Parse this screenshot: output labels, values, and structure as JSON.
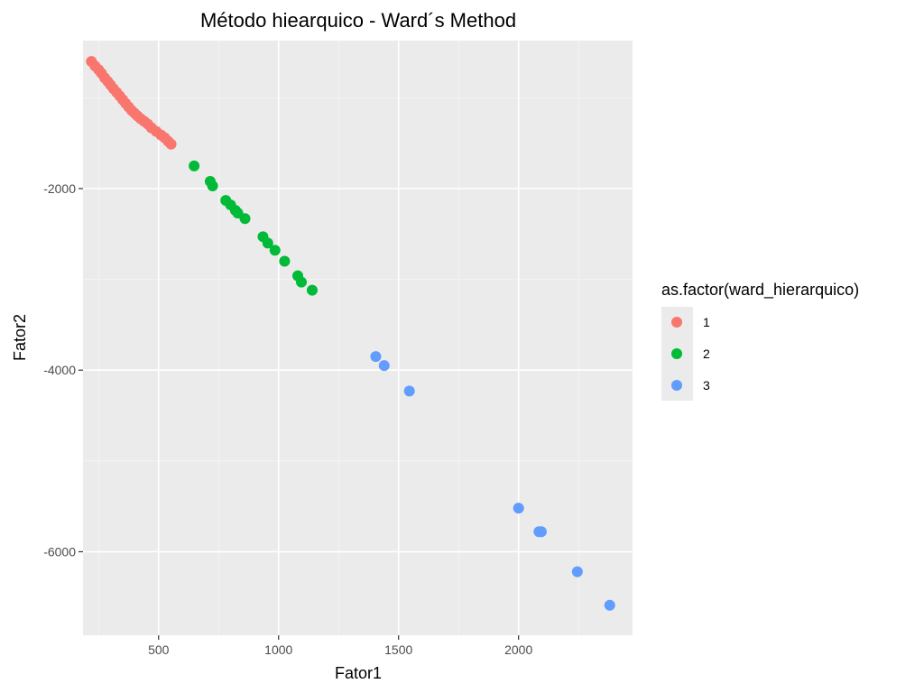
{
  "chart_data": {
    "type": "scatter",
    "title": "Método hiearquico - Ward´s Method",
    "xlabel": "Fator1",
    "ylabel": "Fator2",
    "xlim": [
      185,
      2475
    ],
    "ylim": [
      -6920,
      -370
    ],
    "x_ticks": [
      500,
      1000,
      1500,
      2000
    ],
    "y_ticks": [
      -2000,
      -4000,
      -6000
    ],
    "x_tick_labels": [
      "500",
      "1000",
      "1500",
      "2000"
    ],
    "y_tick_labels": [
      "-2000",
      "-4000",
      "-6000"
    ],
    "grid": true,
    "legend": {
      "title": "as.factor(ward_hierarquico)",
      "position": "right"
    },
    "series": [
      {
        "name": "1",
        "color": "#F8766D",
        "x": [
          220,
          235,
          250,
          262,
          275,
          288,
          300,
          312,
          325,
          338,
          350,
          362,
          375,
          388,
          400,
          412,
          425,
          440,
          455,
          470,
          490,
          510,
          525,
          540,
          552
        ],
        "y": [
          -600,
          -650,
          -690,
          -730,
          -780,
          -820,
          -860,
          -900,
          -940,
          -980,
          -1020,
          -1060,
          -1100,
          -1140,
          -1170,
          -1200,
          -1230,
          -1260,
          -1290,
          -1330,
          -1370,
          -1410,
          -1440,
          -1480,
          -1510
        ]
      },
      {
        "name": "2",
        "color": "#00BA38",
        "x": [
          648,
          715,
          725,
          780,
          800,
          820,
          830,
          860,
          935,
          955,
          985,
          1025,
          1080,
          1095,
          1140
        ],
        "y": [
          -1750,
          -1920,
          -1970,
          -2130,
          -2180,
          -2240,
          -2270,
          -2330,
          -2530,
          -2600,
          -2680,
          -2800,
          -2960,
          -3030,
          -3120
        ]
      },
      {
        "name": "3",
        "color": "#619CFF",
        "x": [
          1405,
          1440,
          1545,
          2000,
          2085,
          2095,
          2245,
          2380
        ],
        "y": [
          -3850,
          -3950,
          -4230,
          -5520,
          -5780,
          -5780,
          -6220,
          -6590
        ]
      }
    ]
  }
}
